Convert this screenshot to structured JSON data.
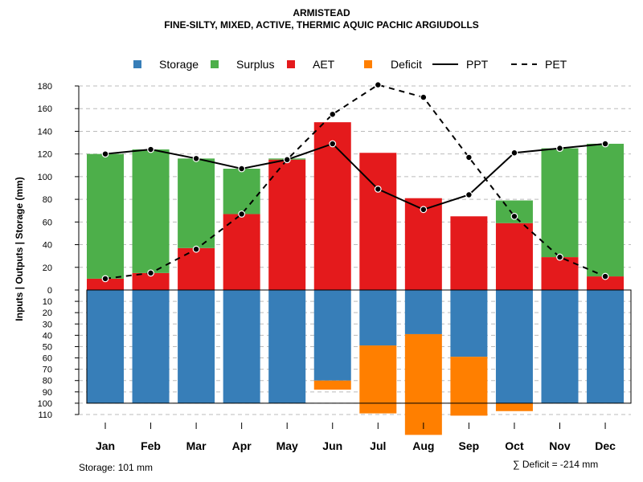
{
  "chart_data": {
    "type": "bar",
    "title": "ARMISTEAD",
    "subtitle": "FINE-SILTY, MIXED, ACTIVE, THERMIC AQUIC PACHIC ARGIUDOLLS",
    "ylabel": "Inputs | Outputs | Storage    (mm)",
    "categories": [
      "Jan",
      "Feb",
      "Mar",
      "Apr",
      "May",
      "Jun",
      "Jul",
      "Aug",
      "Sep",
      "Oct",
      "Nov",
      "Dec"
    ],
    "upper_ylim": [
      0,
      180
    ],
    "upper_ticks": [
      "0",
      "20",
      "40",
      "60",
      "80",
      "100",
      "120",
      "140",
      "160",
      "180"
    ],
    "lower_ylim": [
      0,
      110
    ],
    "lower_ticks": [
      "10",
      "20",
      "30",
      "40",
      "50",
      "60",
      "70",
      "80",
      "90",
      "100",
      "110"
    ],
    "lower_tick_values": [
      10,
      20,
      30,
      40,
      50,
      60,
      70,
      80,
      90,
      100,
      110
    ],
    "series": [
      {
        "name": "Storage",
        "color": "#377EB8",
        "values": [
          100,
          100,
          100,
          100,
          100,
          80,
          49,
          39,
          59,
          100,
          100,
          100
        ]
      },
      {
        "name": "Surplus",
        "color": "#4DAF4A",
        "values": [
          110,
          109,
          79,
          40,
          1,
          0,
          0,
          0,
          0,
          20,
          96,
          117
        ]
      },
      {
        "name": "AET",
        "color": "#E41A1C",
        "values": [
          10,
          15,
          37,
          67,
          115,
          148,
          121,
          81,
          65,
          59,
          29,
          12
        ]
      },
      {
        "name": "Deficit",
        "color": "#FF7F00",
        "values": [
          0,
          0,
          0,
          0,
          0,
          8,
          60,
          89,
          52,
          7,
          0,
          0
        ]
      },
      {
        "name": "PPT",
        "color": "#000000",
        "style": "solid",
        "values": [
          120,
          124,
          116,
          107,
          115,
          129,
          89,
          71,
          84,
          121,
          125,
          129
        ]
      },
      {
        "name": "PET",
        "color": "#000000",
        "style": "dashed",
        "values": [
          10,
          15,
          36,
          67,
          115,
          155,
          181,
          170,
          117,
          65,
          29,
          12
        ]
      }
    ],
    "notes": {
      "storage": "Storage: 101 mm",
      "deficit": "∑ Deficit = -214 mm"
    }
  }
}
